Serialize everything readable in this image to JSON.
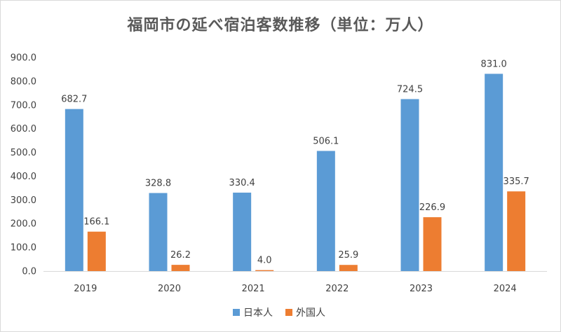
{
  "chart_data": {
    "type": "bar",
    "title": "福岡市の延べ宿泊客数推移（単位：万人）",
    "categories": [
      "2019",
      "2020",
      "2021",
      "2022",
      "2023",
      "2024"
    ],
    "series": [
      {
        "name": "日本人",
        "color": "#5b9bd5",
        "values": [
          682.7,
          328.8,
          330.4,
          506.1,
          724.5,
          831.0
        ],
        "labels": [
          "682.7",
          "328.8",
          "330.4",
          "506.1",
          "724.5",
          "831.0"
        ]
      },
      {
        "name": "外国人",
        "color": "#ed7d31",
        "values": [
          166.1,
          26.2,
          4.0,
          25.9,
          226.9,
          335.7
        ],
        "labels": [
          "166.1",
          "26.2",
          "4.0",
          "25.9",
          "226.9",
          "335.7"
        ]
      }
    ],
    "yticks": [
      "0.0",
      "100.0",
      "200.0",
      "300.0",
      "400.0",
      "500.0",
      "600.0",
      "700.0",
      "800.0",
      "900.0"
    ],
    "ylim": [
      0,
      900
    ],
    "grid": false,
    "legend_position": "bottom"
  }
}
